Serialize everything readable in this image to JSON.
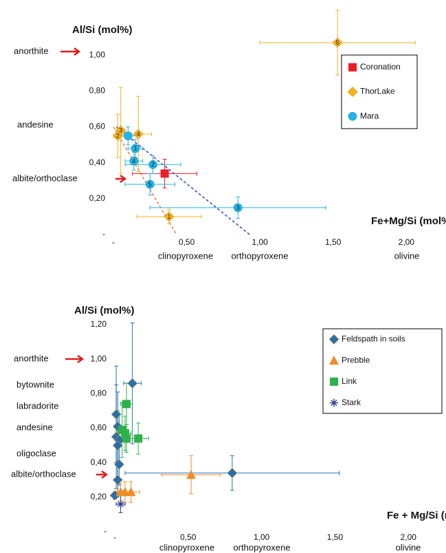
{
  "chart_data": [
    {
      "type": "scatter",
      "ylabel": "Al/Si (mol%)",
      "xlabel": "Fe+Mg/Si (mol%)",
      "xlim": [
        0,
        2.2
      ],
      "ylim": [
        0,
        1.25
      ],
      "xticks": [
        {
          "value": 0,
          "label": "-"
        },
        {
          "value": 0.5,
          "label": "0,50"
        },
        {
          "value": 1,
          "label": "1,00"
        },
        {
          "value": 1.5,
          "label": "1,50"
        },
        {
          "value": 2,
          "label": "2,00"
        }
      ],
      "yticks": [
        {
          "value": 0,
          "label": "-"
        },
        {
          "value": 0.2,
          "label": "0,20"
        },
        {
          "value": 0.4,
          "label": "0,40"
        },
        {
          "value": 0.6,
          "label": "0,60"
        },
        {
          "value": 0.8,
          "label": "0,80"
        },
        {
          "value": 1,
          "label": "1,00"
        }
      ],
      "annotations": [
        "anorthite",
        "andesine",
        "albite/orthoclase"
      ],
      "x_annotations": [
        "clinopyroxene",
        "orthopyroxene",
        "olivine"
      ],
      "legend": "upper right",
      "series": [
        {
          "name": "Coronation",
          "color": "#ee1c25",
          "marker": "square",
          "x": [
            0.35
          ],
          "y": [
            0.34
          ],
          "xerr": [
            0.22
          ],
          "yerr": [
            0.08
          ]
        },
        {
          "name": "ThorLake",
          "color": "#f6b21b",
          "marker": "diamond",
          "x": [
            0.38,
            0.03,
            0.05,
            0.17,
            1.53
          ],
          "y": [
            0.1,
            0.55,
            0.58,
            0.56,
            1.07
          ],
          "xerr": [
            0.22,
            0.03,
            0.03,
            0.09,
            0.53
          ],
          "yerr": [
            0.04,
            0.12,
            0.24,
            0.21,
            0.18
          ],
          "labels": [
            "1",
            "2",
            "3",
            "4",
            "5"
          ],
          "trend": {
            "x": [
              0,
              0.43
            ],
            "y": [
              0.6,
              0
            ]
          },
          "trend_color": "#f0804a"
        },
        {
          "name": "Mara",
          "color": "#1fb5e8",
          "marker": "circle",
          "x": [
            0.15,
            0.27,
            0.85,
            0.14,
            0.25,
            0.1
          ],
          "y": [
            0.48,
            0.39,
            0.15,
            0.41,
            0.28,
            0.55
          ],
          "xerr": [
            0.05,
            0.19,
            0.6,
            0.06,
            0.17,
            0.06
          ],
          "yerr": [
            0.05,
            0.05,
            0.06,
            0.05,
            0.06,
            0.05
          ],
          "labels": [
            "1",
            "2",
            "3",
            "4",
            "5",
            null
          ],
          "trend": {
            "x": [
              0.02,
              0.93
            ],
            "y": [
              0.6,
              0
            ]
          },
          "trend_color": "#3a4fd0"
        }
      ]
    },
    {
      "type": "scatter",
      "ylabel": "Al/Si (mol%)",
      "xlabel": "Fe + Mg/Si (mol%)",
      "xlim": [
        0,
        2.2
      ],
      "ylim": [
        0,
        1.2
      ],
      "xticks": [
        {
          "value": 0,
          "label": "-"
        },
        {
          "value": 0.5,
          "label": "0,50"
        },
        {
          "value": 1,
          "label": "1,00"
        },
        {
          "value": 1.5,
          "label": "1,50"
        },
        {
          "value": 2,
          "label": "2,00"
        }
      ],
      "yticks": [
        {
          "value": 0,
          "label": "-"
        },
        {
          "value": 0.2,
          "label": "0,20"
        },
        {
          "value": 0.4,
          "label": "0,40"
        },
        {
          "value": 0.6,
          "label": "0,60"
        },
        {
          "value": 0.8,
          "label": "0,80"
        },
        {
          "value": 1,
          "label": "1,00"
        },
        {
          "value": 1.2,
          "label": "1,20"
        }
      ],
      "annotations": [
        "anorthite",
        "bytownite",
        "labradorite",
        "andesine",
        "oligoclase",
        "albite/orthoclase"
      ],
      "x_annotations": [
        "clinopyroxene",
        "orthopyroxene",
        "olivine"
      ],
      "legend": "upper right",
      "series": [
        {
          "name": "Feldspath in soils",
          "color": "#2271b3",
          "marker": "diamond",
          "x": [
            0.01,
            0.02,
            0.01,
            0.03,
            0.02,
            0.03,
            0.02,
            0.12,
            0.8,
            0.0
          ],
          "y": [
            0.68,
            0.61,
            0.55,
            0.53,
            0.5,
            0.39,
            0.3,
            0.86,
            0.34,
            0.21
          ],
          "xerr": [
            0.01,
            0.01,
            0.01,
            0.01,
            0.01,
            0.01,
            0.01,
            0.06,
            0.73,
            0.01
          ],
          "yerr": [
            0.28,
            0.2,
            0.3,
            0.15,
            0.2,
            0.12,
            0.1,
            0.35,
            0.1,
            0.02
          ]
        },
        {
          "name": "Prebble",
          "color": "#f08c28",
          "marker": "triangle",
          "x": [
            0.52,
            0.04,
            0.07,
            0.11
          ],
          "y": [
            0.33,
            0.23,
            0.23,
            0.23
          ],
          "xerr": [
            0.2,
            0.03,
            0.05,
            0.06
          ],
          "yerr": [
            0.11,
            0.05,
            0.06,
            0.06
          ]
        },
        {
          "name": "Link",
          "color": "#2db24a",
          "marker": "square",
          "x": [
            0.08,
            0.05,
            0.07,
            0.08,
            0.16
          ],
          "y": [
            0.74,
            0.59,
            0.57,
            0.54,
            0.54
          ],
          "xerr": [
            0.04,
            0.03,
            0.04,
            0.04,
            0.07
          ],
          "yerr": [
            0.12,
            0.16,
            0.1,
            0.08,
            0.09
          ]
        },
        {
          "name": "Stark",
          "color": "#2c3e8f",
          "marker": "star",
          "x": [
            0.04
          ],
          "y": [
            0.16
          ],
          "xerr": [
            0.03
          ],
          "yerr": [
            0.05
          ]
        }
      ]
    }
  ]
}
